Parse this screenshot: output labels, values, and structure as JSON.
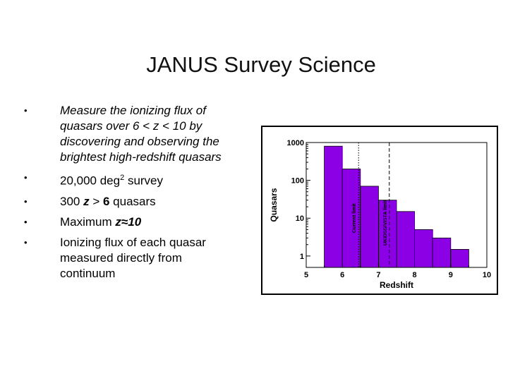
{
  "slide": {
    "title": "JANUS Survey Science",
    "bullets": [
      {
        "symbol": "•",
        "parts": [
          {
            "text": "Measure the ionizing flux of quasars over 6 < z < 10 by discovering and observing the brightest high-redshift quasars",
            "style": "italic"
          }
        ]
      },
      {
        "symbol": "•",
        "parts": [
          {
            "text": "20,000 deg"
          },
          {
            "text": "2",
            "style": "sup"
          },
          {
            "text": " survey"
          }
        ]
      },
      {
        "symbol": "•",
        "parts": [
          {
            "text": "300 "
          },
          {
            "text": "z",
            "style": "bold-italic"
          },
          {
            "text": " > "
          },
          {
            "text": "6",
            "style": "bold"
          },
          {
            "text": " quasars"
          }
        ]
      },
      {
        "symbol": "•",
        "parts": [
          {
            "text": "Maximum "
          },
          {
            "text": "z≈10",
            "style": "bold-italic"
          }
        ]
      },
      {
        "symbol": "•",
        "parts": [
          {
            "text": "Ionizing flux of each quasar measured directly from continuum"
          }
        ]
      }
    ]
  },
  "chart_data": {
    "type": "bar",
    "xlabel": "Redshift",
    "ylabel": "Quasars",
    "y_scale": "log",
    "xlim": [
      5,
      10
    ],
    "ylim": [
      0.5,
      1000
    ],
    "xticks": [
      "5",
      "6",
      "7",
      "8",
      "9",
      "10"
    ],
    "yticks": [
      "1",
      "10",
      "100",
      "1000"
    ],
    "bin_edges": [
      5.5,
      6.0,
      6.5,
      7.0,
      7.5,
      8.0,
      8.5,
      9.0,
      9.5
    ],
    "values": [
      800,
      200,
      70,
      30,
      15,
      5,
      3,
      1.5
    ],
    "bar_color": "#8c00e6",
    "reference_lines": [
      {
        "x": 6.45,
        "label": "Current limit",
        "style": "dotted"
      },
      {
        "x": 7.3,
        "label": "UKIDSS/VISTA limit",
        "style": "dashed"
      }
    ]
  }
}
